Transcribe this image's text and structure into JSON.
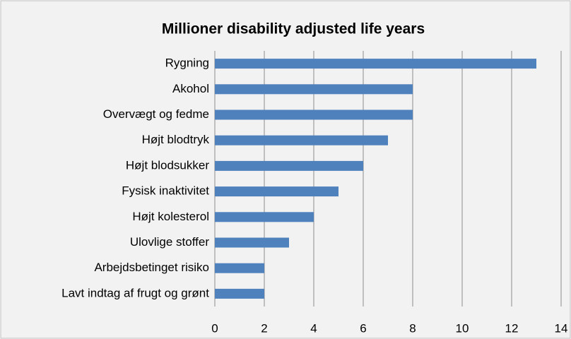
{
  "chart_data": {
    "type": "bar",
    "orientation": "horizontal",
    "title": "Millioner disability adjusted life years",
    "categories": [
      "Rygning",
      "Akohol",
      "Overvægt og fedme",
      "Højt blodtryk",
      "Højt blodsukker",
      "Fysisk inaktivitet",
      "Højt kolesterol",
      "Ulovlige stoffer",
      "Arbejdsbetinget risiko",
      "Lavt indtag af frugt og grønt"
    ],
    "values": [
      13,
      8,
      8,
      7,
      6,
      5,
      4,
      3,
      2,
      2
    ],
    "color": "#4f81bd",
    "xlim": [
      0,
      14
    ],
    "xticks": [
      0,
      2,
      4,
      6,
      8,
      10,
      12,
      14
    ],
    "grid": true
  }
}
